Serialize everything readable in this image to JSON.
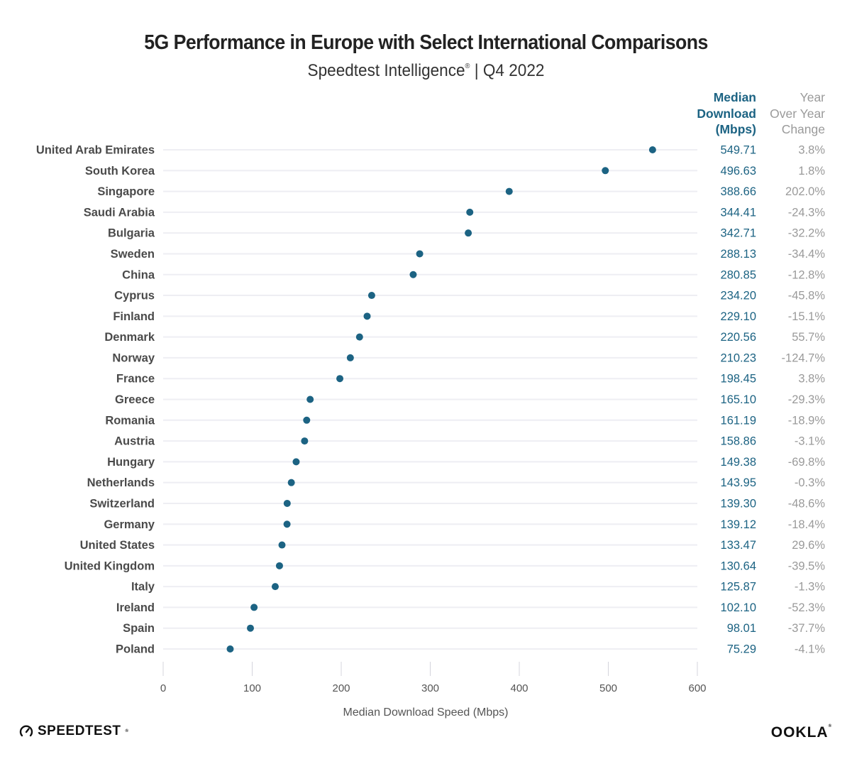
{
  "header": {
    "title": "5G Performance in Europe with Select International Comparisons",
    "subtitle_main": "Speedtest Intelligence",
    "subtitle_reg": "®",
    "subtitle_rest": " | Q4 2022"
  },
  "columns": {
    "download_header": [
      "Median",
      "Download",
      "(Mbps)"
    ],
    "yoy_header": [
      "Year",
      "Over Year",
      "Change"
    ]
  },
  "colors": {
    "dot": "#1c6383",
    "download_text": "#1c6383",
    "yoy_text": "#9a9a9a",
    "label_text": "#4a4a4a",
    "gridline": "#eeeef3"
  },
  "chart_data": {
    "type": "scatter",
    "subtype": "dot-plot",
    "title": "5G Performance in Europe with Select International Comparisons",
    "subtitle": "Speedtest Intelligence® | Q4 2022",
    "xlabel": "Median Download Speed (Mbps)",
    "ylabel": "",
    "xlim": [
      0,
      600
    ],
    "xticks": [
      0,
      100,
      200,
      300,
      400,
      500,
      600
    ],
    "grid": "horizontal row lines",
    "categories": [
      "United Arab Emirates",
      "South Korea",
      "Singapore",
      "Saudi Arabia",
      "Bulgaria",
      "Sweden",
      "China",
      "Cyprus",
      "Finland",
      "Denmark",
      "Norway",
      "France",
      "Greece",
      "Romania",
      "Austria",
      "Hungary",
      "Netherlands",
      "Switzerland",
      "Germany",
      "United States",
      "United Kingdom",
      "Italy",
      "Ireland",
      "Spain",
      "Poland"
    ],
    "series": [
      {
        "name": "Median Download (Mbps)",
        "values": [
          549.71,
          496.63,
          388.66,
          344.41,
          342.71,
          288.13,
          280.85,
          234.2,
          229.1,
          220.56,
          210.23,
          198.45,
          165.1,
          161.19,
          158.86,
          149.38,
          143.95,
          139.3,
          139.12,
          133.47,
          130.64,
          125.87,
          102.1,
          98.01,
          75.29
        ],
        "labels": [
          "549.71",
          "496.63",
          "388.66",
          "344.41",
          "342.71",
          "288.13",
          "280.85",
          "234.20",
          "229.10",
          "220.56",
          "210.23",
          "198.45",
          "165.10",
          "161.19",
          "158.86",
          "149.38",
          "143.95",
          "139.30",
          "139.12",
          "133.47",
          "130.64",
          "125.87",
          "102.10",
          "98.01",
          "75.29"
        ]
      },
      {
        "name": "Year Over Year Change",
        "labels": [
          "3.8%",
          "1.8%",
          "202.0%",
          "-24.3%",
          "-32.2%",
          "-34.4%",
          "-12.8%",
          "-45.8%",
          "-15.1%",
          "55.7%",
          "-124.7%",
          "3.8%",
          "-29.3%",
          "-18.9%",
          "-3.1%",
          "-69.8%",
          "-0.3%",
          "-48.6%",
          "-18.4%",
          "29.6%",
          "-39.5%",
          "-1.3%",
          "-52.3%",
          "-37.7%",
          "-4.1%"
        ]
      }
    ]
  },
  "footer": {
    "speedtest_logo": "SPEEDTEST",
    "speedtest_reg": "®",
    "ookla_logo": "OOKLA",
    "ookla_reg": "®",
    "speedtest_icon": "gauge-icon"
  }
}
